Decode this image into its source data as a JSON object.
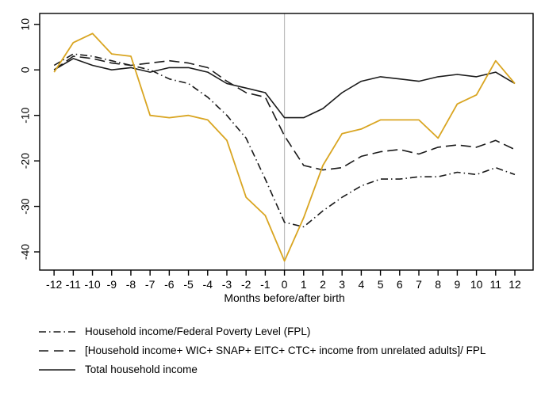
{
  "figure": {
    "background": "#ffffff",
    "axis_color": "#000000",
    "refline_color": "#bdbdbd",
    "series_black": "#1a1a1a",
    "series_orange": "#d9a521"
  },
  "chart_data": {
    "type": "line",
    "title": "",
    "xlabel": "Months before/after birth",
    "ylabel": "",
    "grid": false,
    "legend_position": "bottom-left",
    "xlim": [
      -12.75,
      12.95
    ],
    "ylim": [
      -44,
      12.4
    ],
    "x_ticks": [
      -12,
      -11,
      -10,
      -9,
      -8,
      -7,
      -6,
      -5,
      -4,
      -3,
      -2,
      -1,
      0,
      1,
      2,
      3,
      4,
      5,
      6,
      7,
      8,
      9,
      10,
      11,
      12
    ],
    "y_ticks": [
      10,
      0,
      -10,
      -20,
      -30,
      -40
    ],
    "refline_x": 0,
    "x": [
      -12,
      -11,
      -10,
      -9,
      -8,
      -7,
      -6,
      -5,
      -4,
      -3,
      -2,
      -1,
      0,
      1,
      2,
      3,
      4,
      5,
      6,
      7,
      8,
      9,
      10,
      11,
      12
    ],
    "series": [
      {
        "name": "Household income/Federal Poverty Level (FPL)",
        "style": "dash-dot",
        "color": "#1a1a1a",
        "in_legend": true,
        "values": [
          1,
          3.5,
          3,
          2,
          1,
          0,
          -2,
          -3,
          -6,
          -10,
          -15,
          -24,
          -33.5,
          -34.5,
          -31,
          -28,
          -25.5,
          -24,
          -24,
          -23.5,
          -23.5,
          -22.5,
          -23,
          -21.5,
          -23
        ]
      },
      {
        "name": "[Household income+ WIC+ SNAP+ EITC+ CTC+ income from unrelated adults]/ FPL",
        "style": "long-dash",
        "color": "#1a1a1a",
        "in_legend": true,
        "values": [
          0,
          3,
          2.5,
          1.5,
          1,
          1.5,
          2,
          1.5,
          0.5,
          -2.5,
          -5,
          -6,
          -14.5,
          -21,
          -22,
          -21.5,
          -19,
          -18,
          -17.5,
          -18.5,
          -17,
          -16.5,
          -17,
          -15.5,
          -17.5
        ]
      },
      {
        "name": "Total household income",
        "style": "solid",
        "color": "#1a1a1a",
        "in_legend": true,
        "values": [
          0,
          2.5,
          1,
          0,
          0.5,
          -0.5,
          0.5,
          0.5,
          -0.5,
          -3,
          -4,
          -5,
          -10.5,
          -10.5,
          -8.5,
          -5,
          -2.5,
          -1.5,
          -2,
          -2.5,
          -1.5,
          -1,
          -1.5,
          -0.5,
          -3
        ]
      },
      {
        "name": "unlabeled-orange-series",
        "style": "solid",
        "color": "#d9a521",
        "in_legend": false,
        "values": [
          -0.5,
          6,
          8,
          3.5,
          3,
          -10,
          -10.5,
          -10,
          -11,
          -15.5,
          -28,
          -32,
          -42,
          -32.5,
          -21,
          -14,
          -13,
          -11,
          -11,
          -11,
          -15,
          -7.5,
          -5.5,
          2,
          -3
        ]
      }
    ]
  },
  "legend": {
    "items": [
      {
        "label": "Household income/Federal Poverty Level (FPL)",
        "style": "dash-dot"
      },
      {
        "label": "[Household income+ WIC+ SNAP+ EITC+ CTC+ income from unrelated adults]/ FPL",
        "style": "long-dash"
      },
      {
        "label": "Total household income",
        "style": "solid"
      }
    ]
  }
}
